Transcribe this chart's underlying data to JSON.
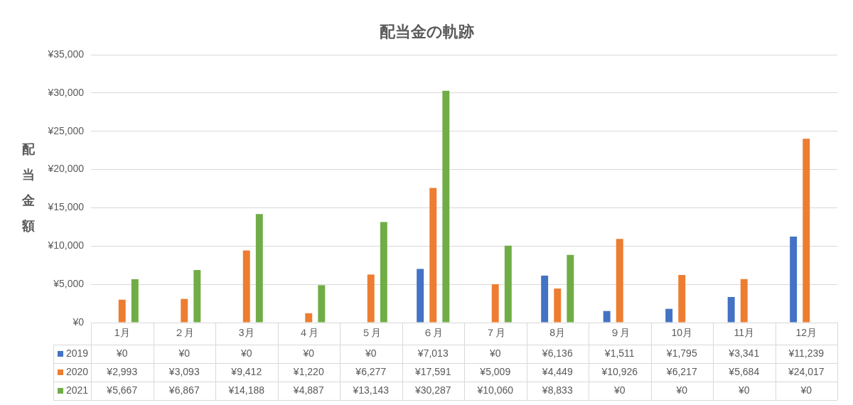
{
  "chart_data": {
    "type": "bar",
    "title": "配当金の軌跡",
    "ylabel": "配当金額",
    "categories": [
      "1月",
      "２月",
      "3月",
      "４月",
      "５月",
      "６月",
      "７月",
      "8月",
      "９月",
      "10月",
      "11月",
      "12月"
    ],
    "series": [
      {
        "name": "2019",
        "color": "#4472c4",
        "values": [
          0,
          0,
          0,
          0,
          0,
          7013,
          0,
          6136,
          1511,
          1795,
          3341,
          11239
        ],
        "value_labels": [
          "¥0",
          "¥0",
          "¥0",
          "¥0",
          "¥0",
          "¥7,013",
          "¥0",
          "¥6,136",
          "¥1,511",
          "¥1,795",
          "¥3,341",
          "¥11,239"
        ]
      },
      {
        "name": "2020",
        "color": "#ed7d31",
        "values": [
          2993,
          3093,
          9412,
          1220,
          6277,
          17591,
          5009,
          4449,
          10926,
          6217,
          5684,
          24017
        ],
        "value_labels": [
          "¥2,993",
          "¥3,093",
          "¥9,412",
          "¥1,220",
          "¥6,277",
          "¥17,591",
          "¥5,009",
          "¥4,449",
          "¥10,926",
          "¥6,217",
          "¥5,684",
          "¥24,017"
        ]
      },
      {
        "name": "2021",
        "color": "#70ad47",
        "values": [
          5667,
          6867,
          14188,
          4887,
          13143,
          30287,
          10060,
          8833,
          0,
          0,
          0,
          0
        ],
        "value_labels": [
          "¥5,667",
          "¥6,867",
          "¥14,188",
          "¥4,887",
          "¥13,143",
          "¥30,287",
          "¥10,060",
          "¥8,833",
          "¥0",
          "¥0",
          "¥0",
          "¥0"
        ]
      }
    ],
    "ylim": [
      0,
      35000
    ],
    "yticks": [
      {
        "value": 0,
        "label": "¥0"
      },
      {
        "value": 5000,
        "label": "¥5,000"
      },
      {
        "value": 10000,
        "label": "¥10,000"
      },
      {
        "value": 15000,
        "label": "¥15,000"
      },
      {
        "value": 20000,
        "label": "¥20,000"
      },
      {
        "value": 25000,
        "label": "¥25,000"
      },
      {
        "value": 30000,
        "label": "¥30,000"
      },
      {
        "value": 35000,
        "label": "¥35,000"
      }
    ],
    "grid": "y",
    "legend": "bottom"
  }
}
